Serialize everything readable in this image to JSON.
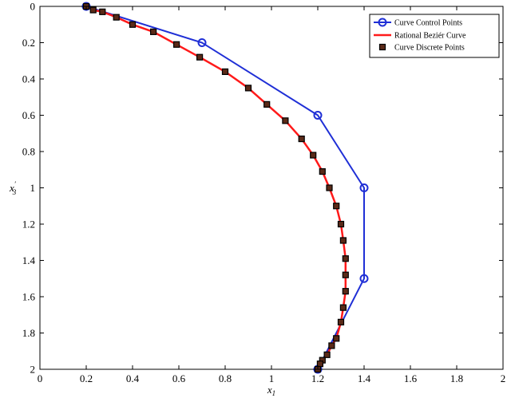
{
  "chart_data": {
    "type": "line",
    "title": "",
    "xlabel": "x1",
    "ylabel": "x3'",
    "xlim": [
      0,
      2
    ],
    "ylim": [
      0,
      2
    ],
    "y_inverted": true,
    "grid": false,
    "legend_placement": "top-right",
    "xticks": [
      "0",
      "0.2",
      "0.4",
      "0.6",
      "0.8",
      "1",
      "1.2",
      "1.4",
      "1.6",
      "1.8",
      "2"
    ],
    "yticks": [
      "0",
      "0.2",
      "0.4",
      "0.6",
      "0.8",
      "1",
      "1.2",
      "1.4",
      "1.6",
      "1.8",
      "2"
    ],
    "series": [
      {
        "name": "Curve Control Points",
        "color": "#1f2fd6",
        "marker": "circle",
        "x": [
          0.2,
          0.7,
          1.2,
          1.4,
          1.4,
          1.2
        ],
        "y": [
          0.0,
          0.2,
          0.6,
          1.0,
          1.5,
          2.0
        ]
      },
      {
        "name": "Rational Beziér Curve",
        "color": "#ff1a1a",
        "marker": "none",
        "x": [
          0.2,
          0.23,
          0.27,
          0.33,
          0.4,
          0.49,
          0.59,
          0.69,
          0.8,
          0.9,
          0.98,
          1.06,
          1.13,
          1.18,
          1.22,
          1.25,
          1.28,
          1.3,
          1.31,
          1.32,
          1.32,
          1.32,
          1.31,
          1.3,
          1.28,
          1.26,
          1.24,
          1.22,
          1.21,
          1.2
        ],
        "y": [
          0.0,
          0.02,
          0.03,
          0.06,
          0.1,
          0.14,
          0.21,
          0.28,
          0.36,
          0.45,
          0.54,
          0.63,
          0.73,
          0.82,
          0.91,
          1.0,
          1.1,
          1.2,
          1.29,
          1.39,
          1.48,
          1.57,
          1.66,
          1.74,
          1.83,
          1.87,
          1.92,
          1.95,
          1.97,
          2.0
        ]
      },
      {
        "name": "Curve Discrete Points",
        "color": "#000000",
        "marker": "square",
        "x": [
          0.2,
          0.23,
          0.27,
          0.33,
          0.4,
          0.49,
          0.59,
          0.69,
          0.8,
          0.9,
          0.98,
          1.06,
          1.13,
          1.18,
          1.22,
          1.25,
          1.28,
          1.3,
          1.31,
          1.32,
          1.32,
          1.32,
          1.31,
          1.3,
          1.28,
          1.26,
          1.24,
          1.22,
          1.21,
          1.2
        ],
        "y": [
          0.0,
          0.02,
          0.03,
          0.06,
          0.1,
          0.14,
          0.21,
          0.28,
          0.36,
          0.45,
          0.54,
          0.63,
          0.73,
          0.82,
          0.91,
          1.0,
          1.1,
          1.2,
          1.29,
          1.39,
          1.48,
          1.57,
          1.66,
          1.74,
          1.83,
          1.87,
          1.92,
          1.95,
          1.97,
          2.0
        ]
      }
    ]
  }
}
